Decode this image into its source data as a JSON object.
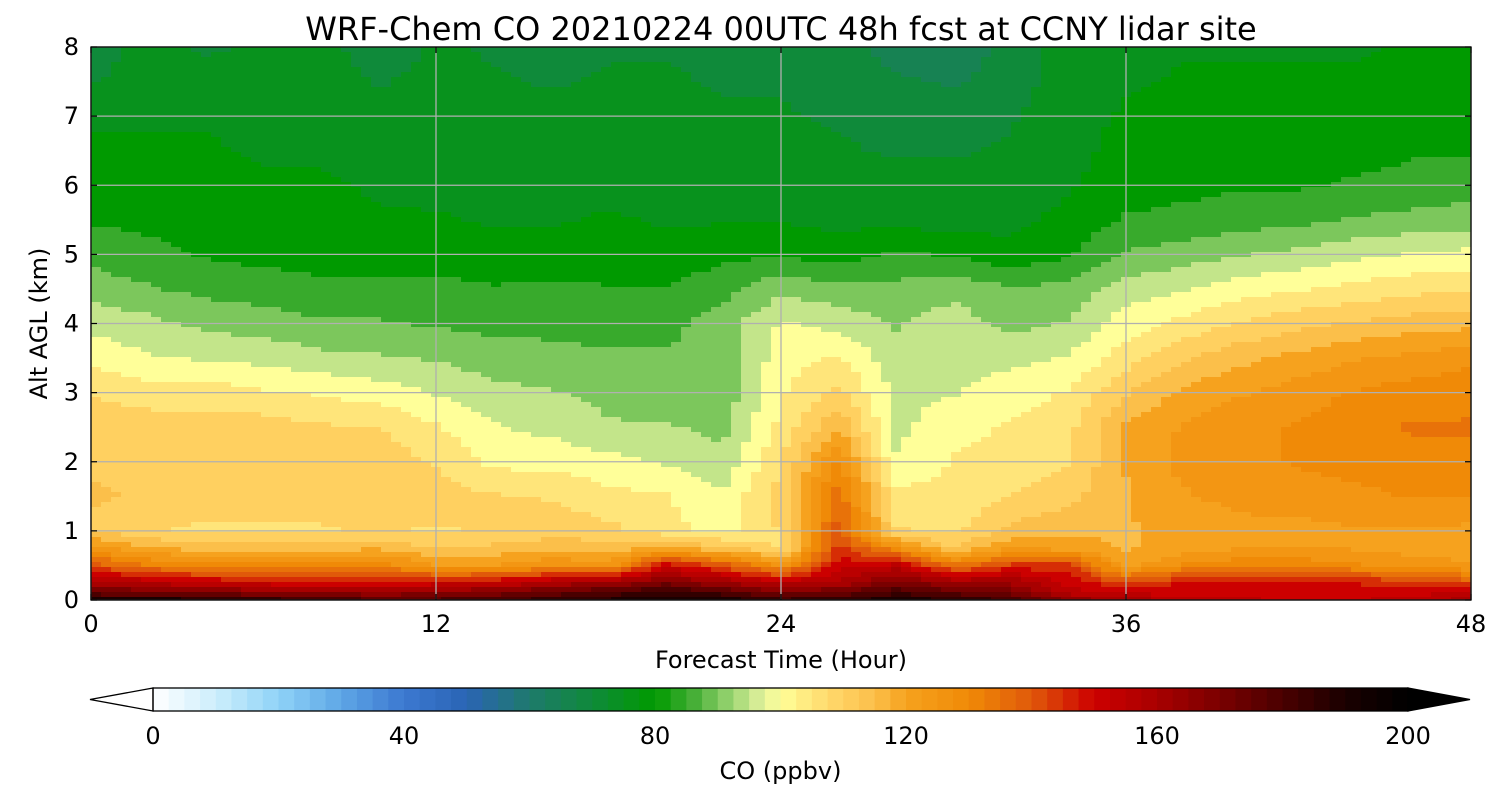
{
  "chart_data": {
    "type": "heatmap",
    "title": "WRF-Chem CO  20210224 00UTC 48h fcst at CCNY lidar site",
    "xlabel": "Forecast Time (Hour)",
    "ylabel": "Alt AGL (km)",
    "xlim": [
      0,
      48
    ],
    "ylim": [
      0,
      8
    ],
    "xticks": [
      0,
      12,
      24,
      36,
      48
    ],
    "yticks": [
      0,
      1,
      2,
      3,
      4,
      5,
      6,
      7,
      8
    ],
    "grid": true,
    "colorbar": {
      "label": "CO  (ppbv)",
      "range": [
        0,
        200
      ],
      "ticks": [
        0,
        40,
        80,
        120,
        160,
        200
      ],
      "extend": "both",
      "stops": [
        [
          0,
          "#ffffff"
        ],
        [
          10,
          "#cdeefc"
        ],
        [
          20,
          "#8fd3f7"
        ],
        [
          30,
          "#5ea6e6"
        ],
        [
          40,
          "#3c78d0"
        ],
        [
          50,
          "#2a64b4"
        ],
        [
          60,
          "#1e7a6c"
        ],
        [
          70,
          "#0f8a3a"
        ],
        [
          80,
          "#009a00"
        ],
        [
          86,
          "#43ad35"
        ],
        [
          92,
          "#98d470"
        ],
        [
          97,
          "#e0f09b"
        ],
        [
          100,
          "#ffff99"
        ],
        [
          105,
          "#ffe57a"
        ],
        [
          110,
          "#ffd060"
        ],
        [
          115,
          "#fbbf4a"
        ],
        [
          120,
          "#f6a21e"
        ],
        [
          130,
          "#f08a07"
        ],
        [
          140,
          "#e0590a"
        ],
        [
          150,
          "#cc0000"
        ],
        [
          160,
          "#a80000"
        ],
        [
          170,
          "#7a0000"
        ],
        [
          180,
          "#4a0000"
        ],
        [
          190,
          "#1a0000"
        ],
        [
          200,
          "#000000"
        ]
      ]
    },
    "time_hours": [
      0,
      2,
      4,
      6,
      8,
      10,
      12,
      14,
      16,
      18,
      20,
      22,
      24,
      26,
      28,
      30,
      32,
      34,
      36,
      38,
      40,
      42,
      44,
      46,
      48
    ],
    "altitude_km": [
      0,
      0.1,
      0.25,
      0.5,
      0.75,
      1,
      1.5,
      2,
      2.5,
      3,
      3.5,
      4,
      4.5,
      5,
      5.5,
      6,
      6.5,
      7,
      7.5,
      8
    ],
    "co_ppbv": [
      [
        190,
        190,
        188,
        185,
        180,
        178,
        178,
        180,
        185,
        188,
        192,
        190,
        183,
        186,
        190,
        187,
        182,
        166,
        160,
        156,
        153,
        152,
        152,
        155,
        160
      ],
      [
        175,
        172,
        170,
        168,
        166,
        164,
        166,
        170,
        175,
        180,
        186,
        180,
        170,
        174,
        182,
        176,
        170,
        156,
        152,
        150,
        150,
        150,
        150,
        150,
        155
      ],
      [
        160,
        156,
        152,
        150,
        146,
        148,
        150,
        152,
        158,
        162,
        170,
        162,
        155,
        158,
        170,
        162,
        162,
        150,
        142,
        148,
        148,
        148,
        147,
        145,
        140
      ],
      [
        140,
        133,
        130,
        131,
        131,
        130,
        123,
        122,
        128,
        124,
        150,
        140,
        126,
        150,
        154,
        134,
        144,
        145,
        120,
        128,
        131,
        131,
        128,
        126,
        123
      ],
      [
        125,
        118,
        115,
        116,
        115,
        117,
        112,
        114,
        115,
        115,
        118,
        114,
        106,
        144,
        128,
        112,
        122,
        120,
        117,
        120,
        122,
        122,
        122,
        120,
        119
      ],
      [
        112,
        108,
        106,
        106,
        107,
        108,
        107,
        108,
        111,
        109,
        104,
        101,
        108,
        140,
        108,
        106,
        114,
        116,
        117,
        119,
        121,
        121,
        122,
        122,
        121
      ],
      [
        113,
        112,
        112,
        111,
        110,
        111,
        110,
        108,
        107,
        104,
        103,
        98,
        110,
        136,
        104,
        104,
        108,
        111,
        117,
        122,
        124,
        125,
        126,
        128,
        128
      ],
      [
        112,
        111,
        110,
        110,
        109,
        110,
        107,
        101,
        101,
        99,
        97,
        94,
        107,
        128,
        98,
        103,
        104,
        107,
        118,
        124,
        126,
        128,
        130,
        131,
        131
      ],
      [
        111,
        110,
        110,
        110,
        108,
        108,
        103,
        98,
        96,
        93,
        93,
        91,
        104,
        117,
        96,
        101,
        103,
        106,
        118,
        123,
        126,
        128,
        131,
        133,
        133
      ],
      [
        107,
        105,
        105,
        103,
        102,
        100,
        97,
        94,
        93,
        91,
        90,
        89,
        102,
        109,
        96,
        97,
        100,
        103,
        112,
        119,
        122,
        125,
        128,
        130,
        131
      ],
      [
        101,
        98,
        97,
        96,
        94,
        93,
        92,
        90,
        89,
        88,
        88,
        90,
        100,
        103,
        94,
        96,
        96,
        98,
        105,
        112,
        116,
        119,
        122,
        124,
        126
      ],
      [
        96,
        94,
        91,
        90,
        88,
        88,
        87,
        86,
        86,
        86,
        86,
        90,
        98,
        96,
        92,
        95,
        91,
        93,
        100,
        104,
        108,
        111,
        113,
        115,
        116
      ],
      [
        90,
        88,
        86,
        85,
        84,
        84,
        84,
        83,
        83,
        83,
        83,
        86,
        91,
        89,
        89,
        91,
        88,
        89,
        95,
        97,
        100,
        102,
        104,
        106,
        107
      ],
      [
        86,
        84,
        82,
        81,
        80,
        80,
        80,
        79,
        80,
        79,
        79,
        81,
        82,
        80,
        83,
        82,
        79,
        82,
        88,
        90,
        92,
        94,
        96,
        98,
        99
      ],
      [
        82,
        81,
        80,
        79,
        79,
        78,
        78,
        77,
        77,
        78,
        77,
        77,
        77,
        76,
        76,
        75,
        76,
        79,
        83,
        84,
        85,
        86,
        88,
        89,
        90
      ],
      [
        80,
        79,
        79,
        78,
        78,
        77,
        76,
        76,
        76,
        76,
        76,
        75,
        75,
        74,
        74,
        74,
        74,
        77,
        80,
        81,
        82,
        82,
        83,
        84,
        85
      ],
      [
        79,
        78,
        78,
        77,
        77,
        76,
        76,
        75,
        75,
        75,
        75,
        74,
        74,
        73,
        72,
        72,
        73,
        76,
        79,
        80,
        80,
        81,
        81,
        82,
        82
      ],
      [
        76,
        77,
        77,
        76,
        76,
        75,
        75,
        74,
        74,
        74,
        74,
        73,
        73,
        72,
        71,
        70,
        72,
        76,
        78,
        79,
        79,
        79,
        80,
        80,
        80
      ],
      [
        72,
        75,
        74,
        74,
        75,
        72,
        74,
        73,
        72,
        73,
        73,
        72,
        72,
        70,
        68,
        67,
        70,
        75,
        77,
        78,
        78,
        78,
        78,
        79,
        79
      ],
      [
        70,
        74,
        72,
        73,
        74,
        70,
        73,
        72,
        70,
        72,
        72,
        72,
        71,
        69,
        66,
        64,
        69,
        75,
        76,
        77,
        77,
        77,
        77,
        78,
        78
      ]
    ]
  }
}
